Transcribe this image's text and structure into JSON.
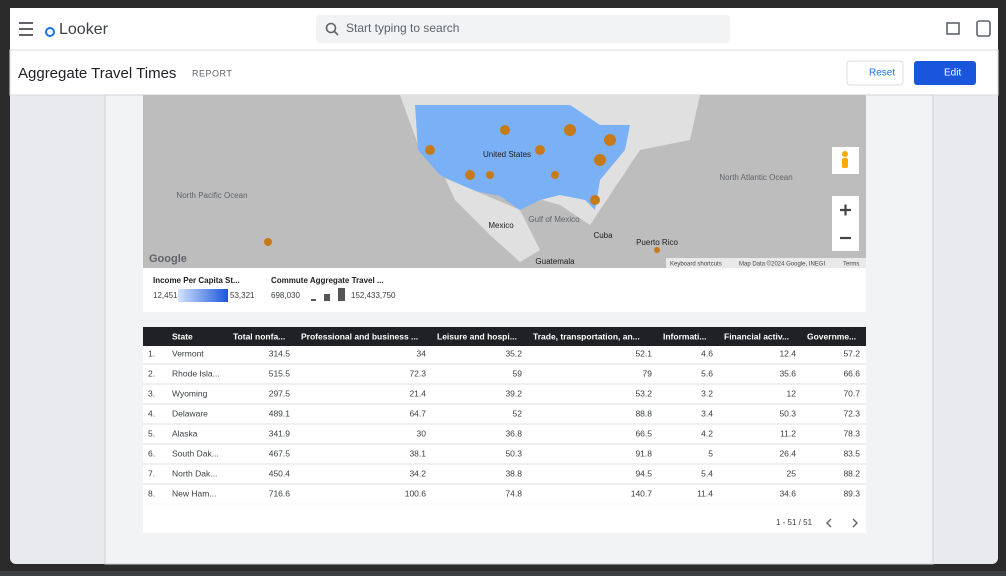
{
  "header": {
    "brand": "Looker",
    "search": "Start typing to search"
  },
  "toolbar": {
    "title": "Aggregate Travel Times",
    "badge": "REPORT",
    "reset": "Reset",
    "edit": "Edit"
  },
  "map": {
    "labels": [
      "North Pacific Ocean",
      "United States",
      "North Atlantic Ocean",
      "Mexico",
      "Gulf of Mexico",
      "Cuba",
      "Puerto Rico",
      "Guatemala"
    ],
    "credit": "Google",
    "footer": [
      "Keyboard shortcuts",
      "Map Data ©2024 Google, INEGI",
      "Terms"
    ]
  },
  "legend": {
    "income": {
      "title": "Income Per Capita St...",
      "min": "12,451",
      "max": "53,321"
    },
    "commute": {
      "title": "Commute Aggregate Travel ...",
      "min": "698,030",
      "max": "152,433,750"
    }
  },
  "table": {
    "columns": [
      "State",
      "Total nonfa...",
      "Professional and business ...",
      "Leisure and hospi...",
      "Trade, transportation, an...",
      "Informati...",
      "Financial activ...",
      "Governme..."
    ],
    "rows": [
      [
        "1.",
        "Vermont",
        314.5,
        34,
        35.2,
        52.1,
        4.6,
        12.4,
        57.2
      ],
      [
        "2.",
        "Rhode Isla...",
        515.5,
        72.3,
        59,
        79,
        5.6,
        35.6,
        66.6
      ],
      [
        "3.",
        "Wyoming",
        297.5,
        21.4,
        39.2,
        53.2,
        3.2,
        12,
        70.7
      ],
      [
        "4.",
        "Delaware",
        489.1,
        64.7,
        52,
        88.8,
        3.4,
        50.3,
        72.3
      ],
      [
        "5.",
        "Alaska",
        341.9,
        30,
        36.8,
        66.5,
        4.2,
        11.2,
        78.3
      ],
      [
        "6.",
        "South Dak...",
        467.5,
        38.1,
        50.3,
        91.8,
        5,
        26.4,
        83.5
      ],
      [
        "7.",
        "North Dak...",
        450.4,
        34.2,
        38.8,
        94.5,
        5.4,
        25,
        88.2
      ],
      [
        "8.",
        "New Ham...",
        716.6,
        100.6,
        74.8,
        140.7,
        11.4,
        34.6,
        89.3
      ]
    ],
    "pagination": "1 - 51 / 51"
  }
}
